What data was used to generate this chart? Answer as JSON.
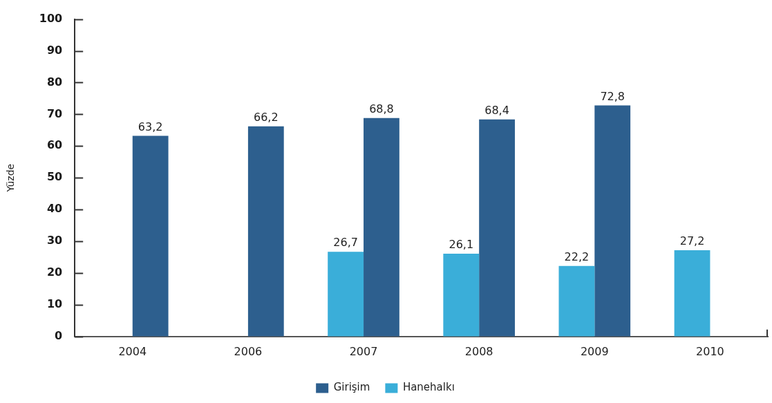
{
  "chart_data": {
    "type": "bar",
    "ylabel": "Yüzde",
    "categories": [
      "2004",
      "2006",
      "2007",
      "2008",
      "2009",
      "2010"
    ],
    "series": [
      {
        "name": "Hanehalkı",
        "color": "#3aaed9",
        "values": [
          null,
          null,
          26.7,
          26.1,
          22.2,
          27.2
        ],
        "value_labels": [
          null,
          null,
          "26,7",
          "26,1",
          "22,2",
          "27,2"
        ]
      },
      {
        "name": "Girişim",
        "color": "#2d5f8e",
        "values": [
          63.2,
          66.2,
          68.8,
          68.4,
          72.8,
          null
        ],
        "value_labels": [
          "63,2",
          "66,2",
          "68,8",
          "68,4",
          "72,8",
          null
        ]
      }
    ],
    "ylim": [
      0,
      100
    ],
    "yticks": [
      0,
      10,
      20,
      30,
      40,
      50,
      60,
      70,
      80,
      90,
      100
    ],
    "legend": "bottom"
  }
}
